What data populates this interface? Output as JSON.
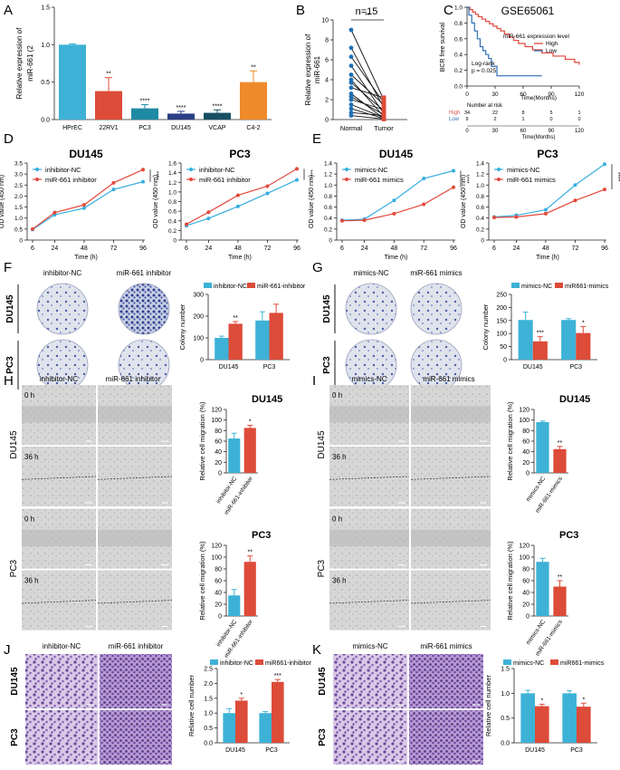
{
  "figure": {
    "panels": {
      "A": "A",
      "B": "B",
      "C": "C",
      "D": "D",
      "E": "E",
      "F": "F",
      "G": "G",
      "H": "H",
      "I": "I",
      "J": "J",
      "K": "K"
    },
    "colors": {
      "blue": "#3db2d6",
      "red": "#dd4b39",
      "orange": "#ef8a2b",
      "navy": "#2b3f86",
      "teal": "#1f8aa3",
      "darkteal": "#174f63",
      "cyanline": "#36aee0",
      "redline": "#e2493c",
      "risk_high": "#d9534f",
      "risk_low": "#2f6fb5",
      "purple": "#5a3d8a",
      "dish": "#d8dce6"
    }
  },
  "chart_data": [
    {
      "id": "A",
      "type": "bar",
      "ylabel": "Relative expression of miR-661 (2^-ΔΔCt)",
      "ylim": [
        0,
        1.5
      ],
      "yticks": [
        0,
        0.5,
        1.0,
        1.5
      ],
      "ytick_labels": [
        "0.0",
        "0.5",
        "1.0",
        "1.5"
      ],
      "categories": [
        "HPrEC",
        "22RV1",
        "PC3",
        "DU145",
        "VCAP",
        "C4-2"
      ],
      "values": [
        1.0,
        0.38,
        0.15,
        0.08,
        0.09,
        0.5
      ],
      "errors": [
        0.01,
        0.18,
        0.05,
        0.03,
        0.04,
        0.15
      ],
      "sig": [
        "",
        "**",
        "****",
        "****",
        "****",
        "**"
      ],
      "colors": [
        "#3db2d6",
        "#dd4b39",
        "#1f8aa3",
        "#2b3f86",
        "#174f63",
        "#ef8a2b"
      ]
    },
    {
      "id": "B",
      "type": "paired",
      "title": "n=15",
      "sig": "**",
      "ylabel": "Relative expression of miR-661",
      "ylim": [
        0,
        10
      ],
      "yticks": [
        0,
        2,
        4,
        6,
        8,
        10
      ],
      "categories": [
        "Normal",
        "Tumor"
      ],
      "normal": [
        9.0,
        7.2,
        6.3,
        5.4,
        4.5,
        4.0,
        3.7,
        3.2,
        2.6,
        2.3,
        2.0,
        1.5,
        1.1,
        0.7,
        0.4
      ],
      "tumor": [
        2.0,
        1.2,
        1.7,
        0.6,
        1.5,
        0.3,
        0.9,
        2.2,
        0.1,
        0.5,
        1.0,
        0.2,
        0.1,
        0.4,
        0.05
      ]
    },
    {
      "id": "C",
      "type": "survival",
      "title": "GSE65061",
      "ylabel": "BCR free survival",
      "xlabel": "Time(Months)",
      "xlim": [
        0,
        120
      ],
      "xticks": [
        0,
        30,
        60,
        90,
        120
      ],
      "ylim": [
        0,
        1
      ],
      "yticks": [
        0,
        0.2,
        0.4,
        0.6,
        0.8,
        1.0
      ],
      "ytick_labels": [
        "0.0",
        "0.2",
        "0.4",
        "0.6",
        "0.8",
        "1.0"
      ],
      "legend_title": "miR-661 expression level",
      "series": [
        {
          "name": "High",
          "color": "#e2493c",
          "t": [
            0,
            3,
            6,
            9,
            12,
            16,
            20,
            24,
            28,
            32,
            36,
            40,
            45,
            50,
            55,
            62,
            70,
            80,
            92,
            105,
            115,
            120
          ],
          "s": [
            1.0,
            0.97,
            0.94,
            0.91,
            0.88,
            0.85,
            0.82,
            0.79,
            0.76,
            0.73,
            0.7,
            0.66,
            0.62,
            0.58,
            0.54,
            0.5,
            0.46,
            0.42,
            0.38,
            0.34,
            0.3,
            0.27
          ]
        },
        {
          "name": "Low",
          "color": "#2f6fb5",
          "t": [
            0,
            2,
            5,
            8,
            11,
            14,
            17,
            20,
            23,
            26,
            32,
            60,
            80
          ],
          "s": [
            1.0,
            0.9,
            0.8,
            0.7,
            0.6,
            0.5,
            0.45,
            0.4,
            0.35,
            0.25,
            0.13,
            0.13,
            0.13
          ]
        }
      ],
      "annotation": [
        "Log-rank",
        "p = 0.025"
      ],
      "risk_title": "Number at risk",
      "risk_rows": [
        {
          "label": "High",
          "values": [
            "34",
            "22",
            "8",
            "5",
            "1"
          ]
        },
        {
          "label": "Low",
          "values": [
            "9",
            "2",
            "1",
            "0",
            "0"
          ]
        }
      ]
    },
    {
      "id": "D1",
      "type": "line",
      "title": "DU145",
      "ylabel": "OD value (450 nm)",
      "xlabel": "Time (h)",
      "x": [
        6,
        24,
        48,
        72,
        96
      ],
      "ylim": [
        0,
        3.5
      ],
      "yticks": [
        0,
        0.5,
        1.0,
        1.5,
        2.0,
        2.5,
        3.0,
        3.5
      ],
      "ytick_labels": [
        "0",
        "0.5",
        "1.0",
        "1.5",
        "2.0",
        "2.5",
        "3.0",
        "3.5"
      ],
      "sig": "****",
      "series": [
        {
          "name": "inhibitor-NC",
          "color": "#36aee0",
          "values": [
            0.48,
            1.15,
            1.45,
            2.3,
            2.65
          ]
        },
        {
          "name": "miR-661 inhibitor",
          "color": "#e2493c",
          "values": [
            0.5,
            1.25,
            1.6,
            2.6,
            3.2
          ]
        }
      ]
    },
    {
      "id": "D2",
      "type": "line",
      "title": "PC3",
      "ylabel": "OD value (450 nm)",
      "xlabel": "Time (h)",
      "x": [
        6,
        24,
        48,
        72,
        96
      ],
      "ylim": [
        0,
        1.6
      ],
      "yticks": [
        0,
        0.2,
        0.4,
        0.6,
        0.8,
        1.0,
        1.2,
        1.4,
        1.6
      ],
      "ytick_labels": [
        "0",
        "0.2",
        "0.4",
        "0.6",
        "0.8",
        "1.0",
        "1.2",
        "1.4",
        "1.6"
      ],
      "sig": "****",
      "series": [
        {
          "name": "inhibitor-NC",
          "color": "#36aee0",
          "values": [
            0.3,
            0.45,
            0.7,
            0.97,
            1.25
          ]
        },
        {
          "name": "miR-661 inhibitor",
          "color": "#e2493c",
          "values": [
            0.33,
            0.58,
            0.93,
            1.12,
            1.48
          ]
        }
      ]
    },
    {
      "id": "E1",
      "type": "line",
      "title": "DU145",
      "ylabel": "OD value (450 nm)",
      "xlabel": "Time (h)",
      "x": [
        6,
        24,
        48,
        72,
        96
      ],
      "ylim": [
        0,
        1.4
      ],
      "yticks": [
        0,
        0.2,
        0.4,
        0.6,
        0.8,
        1.0,
        1.2,
        1.4
      ],
      "ytick_labels": [
        "0",
        "0.2",
        "0.4",
        "0.6",
        "0.8",
        "1.0",
        "1.2",
        "1.4"
      ],
      "sig": "****",
      "series": [
        {
          "name": "mimics-NC",
          "color": "#36aee0",
          "values": [
            0.36,
            0.38,
            0.72,
            1.12,
            1.26
          ]
        },
        {
          "name": "miR-661 mimics",
          "color": "#e2493c",
          "values": [
            0.35,
            0.36,
            0.48,
            0.65,
            0.96
          ]
        }
      ]
    },
    {
      "id": "E2",
      "type": "line",
      "title": "PC3",
      "ylabel": "OD value (450 nm)",
      "xlabel": "Time (h)",
      "x": [
        6,
        24,
        48,
        72,
        96
      ],
      "ylim": [
        0,
        1.4
      ],
      "yticks": [
        0,
        0.2,
        0.4,
        0.6,
        0.8,
        1.0,
        1.2,
        1.4
      ],
      "ytick_labels": [
        "0",
        "0.2",
        "0.4",
        "0.6",
        "0.8",
        "1.0",
        "1.2",
        "1.4"
      ],
      "sig": "****",
      "series": [
        {
          "name": "mimics-NC",
          "color": "#36aee0",
          "values": [
            0.42,
            0.45,
            0.55,
            1.0,
            1.38
          ]
        },
        {
          "name": "miR-661 mimics",
          "color": "#e2493c",
          "values": [
            0.41,
            0.42,
            0.48,
            0.72,
            0.92
          ]
        }
      ]
    },
    {
      "id": "F",
      "type": "bar",
      "ylabel": "Colony number",
      "ylim": [
        0,
        300
      ],
      "yticks": [
        0,
        100,
        200,
        300
      ],
      "categories": [
        "DU145",
        "PC3"
      ],
      "series": [
        {
          "name": "inhibitor-NC",
          "color": "#3db2d6",
          "values": [
            100,
            180
          ],
          "errors": [
            8,
            40
          ]
        },
        {
          "name": "miR-661-inhibitor",
          "color": "#dd4b39",
          "values": [
            165,
            215
          ],
          "errors": [
            10,
            40
          ]
        }
      ],
      "sig": [
        "**",
        ""
      ]
    },
    {
      "id": "G",
      "type": "bar",
      "ylabel": "Colony number",
      "ylim": [
        0,
        250
      ],
      "yticks": [
        0,
        50,
        100,
        150,
        200,
        250
      ],
      "categories": [
        "DU145",
        "PC3"
      ],
      "series": [
        {
          "name": "mimics-NC",
          "color": "#3db2d6",
          "values": [
            152,
            152
          ],
          "errors": [
            30,
            5
          ]
        },
        {
          "name": "miR661-mimics",
          "color": "#dd4b39",
          "values": [
            70,
            102
          ],
          "errors": [
            18,
            25
          ]
        }
      ],
      "sig": [
        "***",
        "*"
      ]
    },
    {
      "id": "H1",
      "type": "bar",
      "title": "DU145",
      "ylabel": "Relative cell migration (%)",
      "ylim": [
        0,
        120
      ],
      "yticks": [
        0,
        20,
        40,
        60,
        80,
        100,
        120
      ],
      "categories": [
        "inhibitor-NC",
        "miR-661-inhibitor"
      ],
      "values": [
        65,
        85
      ],
      "errors": [
        10,
        5
      ],
      "sig": [
        "",
        "*"
      ],
      "colors": [
        "#3db2d6",
        "#dd4b39"
      ]
    },
    {
      "id": "H2",
      "type": "bar",
      "title": "PC3",
      "ylabel": "Relative cell migration (%)",
      "ylim": [
        0,
        120
      ],
      "yticks": [
        0,
        20,
        40,
        60,
        80,
        100,
        120
      ],
      "categories": [
        "inhibitor-NC",
        "miR-661-inhibitor"
      ],
      "values": [
        35,
        92
      ],
      "errors": [
        10,
        10
      ],
      "sig": [
        "",
        "**"
      ],
      "colors": [
        "#3db2d6",
        "#dd4b39"
      ]
    },
    {
      "id": "I1",
      "type": "bar",
      "title": "DU145",
      "ylabel": "Relative cell migration (%)",
      "ylim": [
        0,
        120
      ],
      "yticks": [
        0,
        20,
        40,
        60,
        80,
        100,
        120
      ],
      "categories": [
        "mimics-NC",
        "miR-661-mimics"
      ],
      "values": [
        96,
        45
      ],
      "errors": [
        2,
        5
      ],
      "sig": [
        "",
        "**"
      ],
      "colors": [
        "#3db2d6",
        "#dd4b39"
      ]
    },
    {
      "id": "I2",
      "type": "bar",
      "title": "PC3",
      "ylabel": "Relative cell migration (%)",
      "ylim": [
        0,
        120
      ],
      "yticks": [
        0,
        20,
        40,
        60,
        80,
        100,
        120
      ],
      "categories": [
        "mimics-NC",
        "miR-661-mimics"
      ],
      "values": [
        92,
        50
      ],
      "errors": [
        6,
        10
      ],
      "sig": [
        "",
        "**"
      ],
      "colors": [
        "#3db2d6",
        "#dd4b39"
      ]
    },
    {
      "id": "J",
      "type": "bar",
      "ylabel": "Relative cell number",
      "ylim": [
        0,
        2.5
      ],
      "yticks": [
        0,
        0.5,
        1.0,
        1.5,
        2.0,
        2.5
      ],
      "ytick_labels": [
        "0.0",
        "0.5",
        "1.0",
        "1.5",
        "2.0",
        "2.5"
      ],
      "categories": [
        "DU145",
        "PC3"
      ],
      "series": [
        {
          "name": "inhibitor-NC",
          "color": "#3db2d6",
          "values": [
            1.0,
            1.0
          ],
          "errors": [
            0.15,
            0.05
          ]
        },
        {
          "name": "miR661-inhibitor",
          "color": "#dd4b39",
          "values": [
            1.42,
            2.05
          ],
          "errors": [
            0.08,
            0.08
          ]
        }
      ],
      "sig": [
        "*",
        "***"
      ]
    },
    {
      "id": "K",
      "type": "bar",
      "ylabel": "Relative cell number",
      "ylim": [
        0,
        1.5
      ],
      "yticks": [
        0,
        0.5,
        1.0,
        1.5
      ],
      "ytick_labels": [
        "0.0",
        "0.5",
        "1.0",
        "1.5"
      ],
      "categories": [
        "DU145",
        "PC3"
      ],
      "series": [
        {
          "name": "mimics-NC",
          "color": "#3db2d6",
          "values": [
            1.0,
            1.0
          ],
          "errors": [
            0.06,
            0.05
          ]
        },
        {
          "name": "miR661-mimics",
          "color": "#dd4b39",
          "values": [
            0.74,
            0.73
          ],
          "errors": [
            0.04,
            0.07
          ]
        }
      ],
      "sig": [
        "*",
        "*"
      ]
    }
  ],
  "images": {
    "F": {
      "cols": [
        "inhibitor-NC",
        "miR-661 inhibitor"
      ],
      "rows": [
        "DU145",
        "PC3"
      ]
    },
    "G": {
      "cols": [
        "mimics-NC",
        "miR-661 mimics"
      ],
      "rows": [
        "DU145",
        "PC3"
      ]
    },
    "H": {
      "cols": [
        "inhibitor-NC",
        "miR-661 inhibitor"
      ],
      "rows": [
        "DU145",
        "PC3"
      ],
      "times": [
        "0 h",
        "36 h"
      ]
    },
    "I": {
      "cols": [
        "mimics-NC",
        "miR-661 mimics"
      ],
      "rows": [
        "DU145",
        "PC3"
      ],
      "times": [
        "0 h",
        "36 h"
      ]
    },
    "J": {
      "cols": [
        "inhibitor-NC",
        "miR-661 inhibitor"
      ],
      "rows": [
        "DU145",
        "PC3"
      ]
    },
    "K": {
      "cols": [
        "mimics-NC",
        "miR-661 mimics"
      ],
      "rows": [
        "DU145",
        "PC3"
      ]
    }
  }
}
